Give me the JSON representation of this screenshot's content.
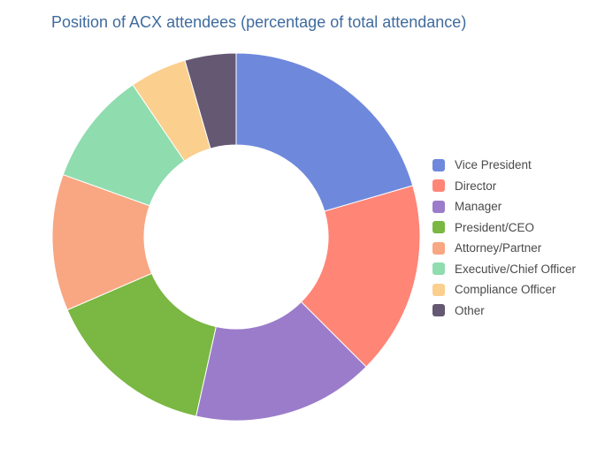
{
  "chart_data": {
    "type": "pie",
    "title": "Position of ACX attendees (percentage of total attendance)",
    "hole": true,
    "legend_position": "right",
    "categories": [
      "Vice President",
      "Director",
      "Manager",
      "President/CEO",
      "Attorney/Partner",
      "Executive/Chief Officer",
      "Compliance Officer",
      "Other"
    ],
    "values": [
      20.5,
      17.0,
      16.0,
      15.0,
      12.0,
      10.0,
      5.0,
      4.5
    ],
    "colors": [
      "#6e88dc",
      "#ff8577",
      "#9b7cca",
      "#7ab743",
      "#f8a782",
      "#8fdcae",
      "#fbcf8e",
      "#645873"
    ]
  }
}
